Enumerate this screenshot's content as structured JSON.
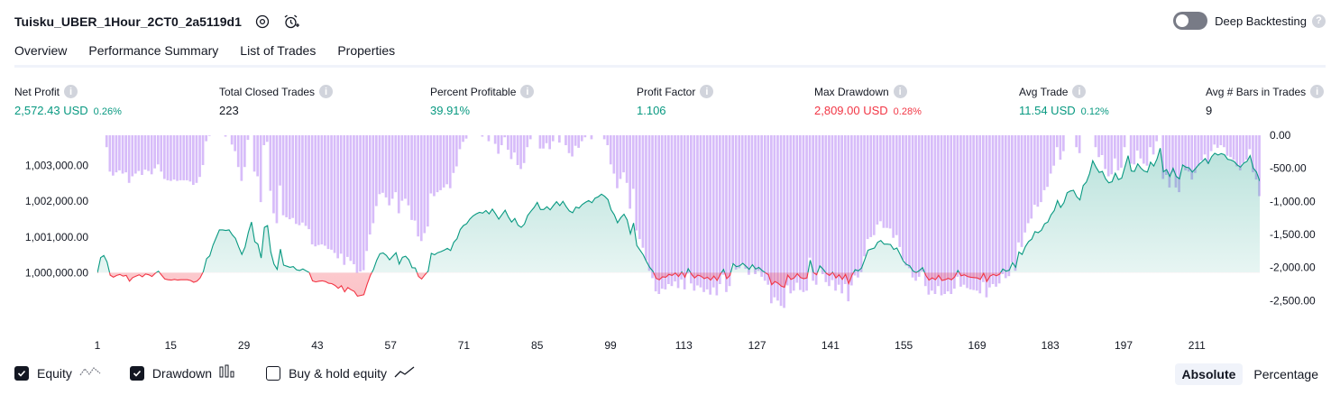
{
  "header": {
    "title": "Tuisku_UBER_1Hour_2CT0_2a5119d1",
    "deep_backtesting_label": "Deep Backtesting",
    "deep_backtesting_enabled": false
  },
  "tabs": [
    {
      "label": "Overview",
      "active": true
    },
    {
      "label": "Performance Summary",
      "active": false
    },
    {
      "label": "List of Trades",
      "active": false
    },
    {
      "label": "Properties",
      "active": false
    }
  ],
  "metrics": [
    {
      "label": "Net Profit",
      "value": "2,572.43 USD",
      "sub": "0.26%",
      "tone": "pos"
    },
    {
      "label": "Total Closed Trades",
      "value": "223",
      "sub": "",
      "tone": "neu"
    },
    {
      "label": "Percent Profitable",
      "value": "39.91%",
      "sub": "",
      "tone": "pos"
    },
    {
      "label": "Profit Factor",
      "value": "1.106",
      "sub": "",
      "tone": "pos"
    },
    {
      "label": "Max Drawdown",
      "value": "2,809.00 USD",
      "sub": "0.28%",
      "tone": "neg"
    },
    {
      "label": "Avg Trade",
      "value": "11.54 USD",
      "sub": "0.12%",
      "tone": "pos"
    },
    {
      "label": "Avg # Bars in Trades",
      "value": "9",
      "sub": "",
      "tone": "neu"
    }
  ],
  "chart_data": {
    "type": "area",
    "x_ticks": [
      "1",
      "15",
      "29",
      "43",
      "57",
      "71",
      "85",
      "99",
      "113",
      "127",
      "141",
      "155",
      "169",
      "183",
      "197",
      "211"
    ],
    "x_range": [
      1,
      223
    ],
    "y_left_ticks": [
      "1,003,000.00",
      "1,002,000.00",
      "1,001,000.00",
      "1,000,000.00"
    ],
    "y_left_range": [
      999400,
      1003600
    ],
    "y_right_ticks": [
      "0.00",
      "-500.00",
      "-1,000.00",
      "-1,500.00",
      "-2,000.00",
      "-2,500.00"
    ],
    "y_right_range": [
      -2809,
      0
    ],
    "equity_baseline": 1000000,
    "series": [
      {
        "name": "Equity",
        "color": "#089981",
        "values": [
          999990,
          1000420,
          1000480,
          1000300,
          999930,
          999870,
          999920,
          999950,
          999900,
          999920,
          999760,
          999860,
          999900,
          999940,
          999880,
          999960,
          999940,
          999890,
          999980,
          1000040,
          999930,
          999820,
          999800,
          999790,
          999810,
          999790,
          999800,
          999800,
          999800,
          999780,
          999730,
          999760,
          999850,
          1000030,
          1000390,
          1000470,
          1000770,
          1000980,
          1001200,
          1001200,
          1001180,
          1001200,
          1001060,
          1000960,
          1000720,
          1000510,
          1000720,
          1001130,
          1001420,
          1000870,
          1000800,
          1000410,
          1001270,
          1001320,
          1000580,
          1000240,
          1000090,
          1000660,
          1000210,
          1000180,
          1000150,
          1000170,
          1000080,
          1000060,
          1000100,
          1000050,
          1000000,
          999770,
          999740,
          999760,
          999770,
          999750,
          999700,
          999690,
          999640,
          999560,
          999630,
          999460,
          999580,
          999520,
          999470,
          999340,
          999360,
          999380,
          999670,
          999920,
          1000090,
          1000350,
          1000530,
          1000550,
          1000480,
          1000360,
          1000460,
          1000560,
          1000240,
          1000430,
          1000460,
          1000360,
          1000140,
          1000130,
          999890,
          999820,
          999940,
          1000040,
          1000540,
          1000500,
          1000560,
          1000590,
          1000630,
          1000680,
          1000620,
          1000850,
          1000950,
          1001210,
          1001320,
          1001370,
          1001500,
          1001590,
          1001650,
          1001690,
          1001670,
          1001740,
          1001650,
          1001780,
          1001650,
          1001500,
          1001630,
          1001750,
          1001560,
          1001420,
          1001520,
          1001330,
          1001270,
          1001360,
          1001600,
          1001720,
          1001830,
          1001970,
          1001770,
          1001770,
          1001850,
          1001760,
          1001880,
          1001990,
          1001880,
          1002000,
          1001850,
          1001730,
          1001680,
          1001840,
          1001810,
          1001910,
          1001970,
          1002020,
          1001960,
          1002090,
          1002130,
          1002200,
          1002140,
          1002050,
          1001760,
          1001620,
          1001400,
          1001540,
          1001640,
          1001480,
          1001090,
          1001390,
          1000760,
          1000630,
          1000500,
          1000310,
          1000150,
          1000040,
          999840,
          999800,
          999880,
          999870,
          999950,
          999920,
          999990,
          999890,
          1000020,
          999870,
          1000110,
          999960,
          999850,
          999930,
          999900,
          999830,
          999870,
          999790,
          999900,
          999780,
          999950,
          1000090,
          999830,
          999920,
          1000250,
          1000170,
          1000190,
          1000260,
          1000180,
          1000090,
          1000220,
          1000100,
          1000150,
          1000060,
          1000000,
          999940,
          999660,
          999750,
          999700,
          999620,
          999590,
          999930,
          999810,
          999850,
          999970,
          999860,
          999830,
          999850,
          1000350,
          1000000,
          999940,
          1000190,
          1000100,
          999980,
          999920,
          1000010,
          999850,
          999940,
          999810,
          999950,
          999690,
          999930,
          1000080,
          1000050,
          1000130,
          1000370,
          1000630,
          1000660,
          1000690,
          1000850,
          1000900,
          1000800,
          1000800,
          1000790,
          1000650,
          1000690,
          1000510,
          1000320,
          1000230,
          1000190,
          1000050,
          1000000,
          1000060,
          1000140,
          999920,
          999790,
          999850,
          999800,
          999920,
          999780,
          999800,
          999840,
          999800,
          999880,
          1000060,
          999910,
          999940,
          999890,
          999870,
          999860,
          999850,
          999810,
          999980,
          999750,
          999900,
          999950,
          999910,
          999960,
          1000100,
          1000040,
          1000070,
          1000280,
          1000150,
          1000580,
          1000510,
          1000730,
          1000870,
          1000940,
          1001150,
          1001120,
          1001190,
          1001370,
          1001420,
          1001620,
          1001740,
          1002020,
          1001830,
          1001960,
          1002240,
          1002290,
          1002310,
          1002130,
          1002040,
          1002440,
          1002540,
          1002780,
          1003140,
          1002960,
          1002810,
          1002840,
          1002630,
          1002520,
          1002550,
          1002790,
          1002610,
          1002650,
          1002960,
          1003280,
          1002850,
          1002840,
          1003050,
          1002930,
          1002850,
          1002820,
          1003100,
          1002990,
          1003190,
          1003490,
          1002830,
          1002890,
          1002700,
          1002930,
          1002700,
          1002630,
          1003020,
          1002960,
          1002940,
          1002820,
          1002920,
          1003030,
          1003110,
          1003200,
          1003060,
          1003250,
          1003350,
          1003300,
          1003340,
          1003310,
          1003180,
          1003160,
          1003120,
          1003020,
          1002960,
          1003070,
          1003120,
          1003280,
          1002930,
          1002820,
          1002570
        ]
      },
      {
        "name": "Drawdown",
        "color": "#c9a5f7",
        "note_unit": "USD"
      }
    ]
  },
  "legend": {
    "equity_label": "Equity",
    "equity_checked": true,
    "drawdown_label": "Drawdown",
    "drawdown_checked": true,
    "buyhold_label": "Buy & hold equity",
    "buyhold_checked": false
  },
  "mode": {
    "absolute_label": "Absolute",
    "percentage_label": "Percentage",
    "selected": "Absolute"
  }
}
